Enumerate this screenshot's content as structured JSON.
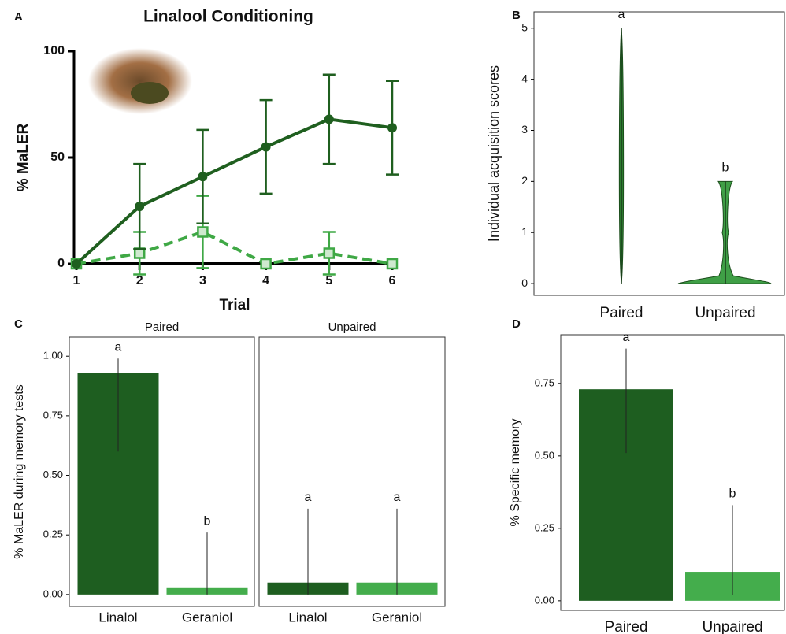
{
  "chart_data": [
    {
      "type": "line",
      "panel_label": "A",
      "title": "Linalool Conditioning",
      "x_label": "Trial",
      "y_label": "% MaLER",
      "x": [
        1,
        2,
        3,
        4,
        5,
        6
      ],
      "xlim": [
        1,
        6
      ],
      "xticks": [
        1,
        2,
        3,
        4,
        5,
        6
      ],
      "ylim": [
        0,
        100
      ],
      "yticks": [
        0,
        50,
        100
      ],
      "series": [
        {
          "color": "#1f5f1f",
          "line_style": "solid",
          "marker": "circle",
          "values": [
            0,
            27,
            41,
            55,
            68,
            64
          ],
          "errors": [
            0,
            20,
            22,
            22,
            21,
            22
          ]
        },
        {
          "color": "#3fa845",
          "line_style": "dashed",
          "marker": "square",
          "values": [
            0,
            5,
            15,
            0,
            5,
            0
          ],
          "errors": [
            0,
            10,
            17,
            0,
            10,
            0
          ]
        }
      ]
    },
    {
      "type": "violin",
      "panel_label": "B",
      "y_label": "Individual acquisition scores",
      "categories": [
        "Paired",
        "Unpaired"
      ],
      "min": [
        0,
        0
      ],
      "max": [
        5,
        2
      ],
      "colors": [
        "#2b7a2e",
        "#3f9f46"
      ],
      "annotations": [
        "a",
        "b"
      ],
      "ylim": [
        -0.23,
        5.32
      ],
      "yticks": [
        0,
        1,
        2,
        3,
        4,
        5
      ]
    },
    {
      "type": "bar",
      "panel_label": "C",
      "y_label": "% MaLER during memory tests",
      "categories": [
        "Linalol",
        "Geraniol"
      ],
      "colors": [
        "#1e5e20",
        "#44ad4c"
      ],
      "ylim": [
        -0.05,
        1.08
      ],
      "yticks": [
        {
          "value": 0,
          "label": "0.00"
        },
        {
          "value": 0.25,
          "label": "0.25"
        },
        {
          "value": 0.5,
          "label": "0.50"
        },
        {
          "value": 0.75,
          "label": "0.75"
        },
        {
          "value": 1,
          "label": "1.00"
        }
      ],
      "facets": [
        {
          "title": "Paired",
          "values": [
            0.93,
            0.03
          ],
          "ci_low": [
            0.6,
            0
          ],
          "ci_high": [
            0.99,
            0.26
          ],
          "annotations": [
            "a",
            "b"
          ]
        },
        {
          "title": "Unpaired",
          "values": [
            0.05,
            0.05
          ],
          "ci_low": [
            0,
            0
          ],
          "ci_high": [
            0.36,
            0.36
          ],
          "annotations": [
            "a",
            "a"
          ]
        }
      ]
    },
    {
      "type": "bar",
      "panel_label": "D",
      "y_label": "% Specific memory",
      "categories": [
        "Paired",
        "Unpaired"
      ],
      "colors": [
        "#1e5e20",
        "#44ad4c"
      ],
      "ylim": [
        -0.033,
        0.918
      ],
      "yticks": [
        {
          "value": 0,
          "label": "0.00"
        },
        {
          "value": 0.25,
          "label": "0.25"
        },
        {
          "value": 0.5,
          "label": "0.50"
        },
        {
          "value": 0.75,
          "label": "0.75"
        }
      ],
      "values": [
        0.73,
        0.1
      ],
      "ci_low": [
        0.51,
        0.02
      ],
      "ci_high": [
        0.87,
        0.33
      ],
      "annotations": [
        "a",
        "b"
      ]
    }
  ]
}
